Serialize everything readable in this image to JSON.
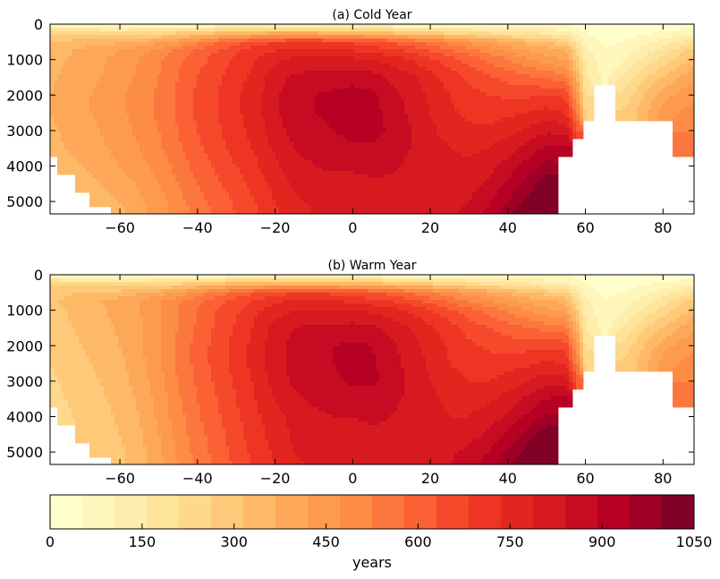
{
  "chart_data": [
    {
      "type": "heatmap",
      "title": "(a) Cold Year",
      "xlabel": "",
      "ylabel": "",
      "xlim": [
        -78,
        88
      ],
      "ylim": [
        5350,
        0
      ],
      "x_ticks": [
        -60,
        -40,
        -20,
        0,
        20,
        40,
        60,
        80
      ],
      "x_tick_labels": [
        "−60",
        "−40",
        "−20",
        "0",
        "20",
        "40",
        "60",
        "80"
      ],
      "y_ticks": [
        0,
        1000,
        2000,
        3000,
        4000,
        5000
      ],
      "y_tick_labels": [
        "0",
        "1000",
        "2000",
        "3000",
        "4000",
        "5000"
      ],
      "x_grid": [
        -78,
        -74,
        -70,
        -65,
        -60,
        -55,
        -50,
        -45,
        -40,
        -35,
        -30,
        -25,
        -20,
        -15,
        -10,
        -5,
        0,
        5,
        10,
        15,
        20,
        25,
        30,
        35,
        40,
        45,
        50,
        55,
        58,
        60,
        65,
        70,
        75,
        80,
        85,
        88
      ],
      "depth_grid": [
        0,
        250,
        500,
        750,
        1000,
        1500,
        2000,
        2500,
        3000,
        3500,
        4000,
        4500,
        5000,
        5350
      ],
      "values_years": [
        [
          20,
          25,
          30,
          35,
          40,
          45,
          50,
          50,
          50,
          50,
          50,
          50,
          50,
          50,
          50,
          50,
          50,
          50,
          50,
          50,
          50,
          50,
          50,
          50,
          50,
          50,
          50,
          50,
          30,
          20,
          10,
          10,
          10,
          10,
          10,
          10
        ],
        [
          250,
          240,
          230,
          225,
          220,
          220,
          230,
          250,
          280,
          300,
          320,
          340,
          350,
          350,
          350,
          340,
          330,
          320,
          300,
          280,
          260,
          240,
          220,
          200,
          180,
          160,
          140,
          120,
          80,
          50,
          30,
          30,
          40,
          60,
          80,
          100
        ],
        [
          300,
          310,
          320,
          330,
          340,
          360,
          390,
          430,
          480,
          540,
          580,
          620,
          650,
          660,
          660,
          650,
          640,
          620,
          600,
          560,
          520,
          480,
          440,
          400,
          360,
          330,
          300,
          260,
          160,
          80,
          40,
          50,
          80,
          120,
          160,
          200
        ],
        [
          320,
          340,
          360,
          380,
          400,
          430,
          470,
          520,
          560,
          600,
          640,
          680,
          700,
          720,
          720,
          720,
          700,
          680,
          660,
          640,
          600,
          560,
          520,
          480,
          440,
          400,
          380,
          360,
          220,
          120,
          50,
          80,
          120,
          180,
          240,
          280
        ],
        [
          330,
          350,
          370,
          390,
          420,
          450,
          490,
          540,
          580,
          620,
          660,
          700,
          740,
          760,
          760,
          760,
          760,
          750,
          730,
          700,
          660,
          620,
          580,
          540,
          500,
          460,
          420,
          400,
          260,
          140,
          60,
          100,
          160,
          220,
          280,
          320
        ],
        [
          340,
          360,
          380,
          400,
          430,
          460,
          500,
          550,
          600,
          640,
          680,
          720,
          780,
          810,
          820,
          820,
          830,
          820,
          790,
          760,
          720,
          680,
          640,
          610,
          580,
          560,
          540,
          520,
          340,
          160,
          80,
          160,
          240,
          300,
          360,
          400
        ],
        [
          350,
          370,
          390,
          410,
          440,
          470,
          510,
          560,
          610,
          650,
          690,
          730,
          790,
          830,
          850,
          860,
          870,
          860,
          820,
          780,
          740,
          700,
          670,
          650,
          640,
          640,
          650,
          640,
          420,
          200,
          null,
          220,
          300,
          380,
          420,
          440
        ],
        [
          350,
          370,
          390,
          410,
          440,
          470,
          510,
          560,
          610,
          650,
          690,
          730,
          790,
          830,
          850,
          860,
          880,
          870,
          830,
          790,
          750,
          710,
          690,
          680,
          690,
          700,
          720,
          700,
          500,
          240,
          null,
          260,
          330,
          420,
          460,
          470
        ],
        [
          340,
          360,
          380,
          400,
          430,
          460,
          500,
          550,
          600,
          640,
          680,
          720,
          780,
          820,
          840,
          850,
          870,
          870,
          840,
          800,
          760,
          730,
          710,
          710,
          730,
          760,
          790,
          780,
          600,
          null,
          null,
          null,
          null,
          null,
          500,
          500
        ],
        [
          330,
          350,
          370,
          390,
          420,
          450,
          490,
          540,
          590,
          630,
          670,
          710,
          760,
          800,
          820,
          830,
          840,
          840,
          820,
          800,
          770,
          750,
          740,
          750,
          780,
          820,
          860,
          870,
          null,
          null,
          null,
          null,
          null,
          null,
          520,
          520
        ],
        [
          null,
          330,
          350,
          370,
          400,
          430,
          470,
          520,
          570,
          610,
          650,
          690,
          740,
          780,
          800,
          810,
          810,
          820,
          810,
          790,
          770,
          760,
          760,
          780,
          820,
          870,
          920,
          null,
          null,
          null,
          null,
          null,
          null,
          null,
          null,
          null
        ],
        [
          null,
          null,
          330,
          350,
          370,
          410,
          450,
          500,
          550,
          590,
          630,
          670,
          720,
          760,
          780,
          780,
          780,
          790,
          790,
          780,
          770,
          770,
          780,
          810,
          860,
          920,
          980,
          null,
          null,
          null,
          null,
          null,
          null,
          null,
          null,
          null
        ],
        [
          null,
          null,
          null,
          330,
          350,
          390,
          430,
          480,
          530,
          570,
          610,
          650,
          700,
          740,
          760,
          760,
          760,
          770,
          770,
          770,
          770,
          780,
          800,
          840,
          900,
          960,
          1020,
          null,
          null,
          null,
          null,
          null,
          null,
          null,
          null,
          null
        ],
        [
          null,
          null,
          null,
          null,
          330,
          380,
          420,
          470,
          520,
          560,
          600,
          640,
          690,
          730,
          750,
          750,
          750,
          760,
          770,
          770,
          780,
          790,
          820,
          870,
          940,
          1000,
          1040,
          null,
          null,
          null,
          null,
          null,
          null,
          null,
          null,
          null
        ]
      ]
    },
    {
      "type": "heatmap",
      "title": "(b) Warm Year",
      "xlabel": "",
      "ylabel": "",
      "xlim": [
        -78,
        88
      ],
      "ylim": [
        5350,
        0
      ],
      "x_ticks": [
        -60,
        -40,
        -20,
        0,
        20,
        40,
        60,
        80
      ],
      "x_tick_labels": [
        "−60",
        "−40",
        "−20",
        "0",
        "20",
        "40",
        "60",
        "80"
      ],
      "y_ticks": [
        0,
        1000,
        2000,
        3000,
        4000,
        5000
      ],
      "y_tick_labels": [
        "0",
        "1000",
        "2000",
        "3000",
        "4000",
        "5000"
      ],
      "x_grid": [
        -78,
        -74,
        -70,
        -65,
        -60,
        -55,
        -50,
        -45,
        -40,
        -35,
        -30,
        -25,
        -20,
        -15,
        -10,
        -5,
        0,
        5,
        10,
        15,
        20,
        25,
        30,
        35,
        40,
        45,
        50,
        55,
        58,
        60,
        65,
        70,
        75,
        80,
        85,
        88
      ],
      "depth_grid": [
        0,
        250,
        500,
        750,
        1000,
        1500,
        2000,
        2500,
        3000,
        3500,
        4000,
        4500,
        5000,
        5350
      ],
      "values_years": [
        [
          20,
          25,
          30,
          35,
          40,
          45,
          50,
          50,
          50,
          50,
          50,
          50,
          50,
          50,
          50,
          50,
          50,
          50,
          50,
          50,
          50,
          50,
          50,
          50,
          50,
          50,
          50,
          50,
          30,
          20,
          10,
          10,
          10,
          10,
          10,
          10
        ],
        [
          240,
          230,
          220,
          215,
          210,
          210,
          220,
          240,
          270,
          290,
          310,
          330,
          340,
          340,
          340,
          330,
          320,
          310,
          290,
          270,
          250,
          230,
          210,
          190,
          170,
          150,
          130,
          110,
          80,
          50,
          30,
          30,
          40,
          60,
          80,
          100
        ],
        [
          280,
          290,
          300,
          310,
          320,
          340,
          370,
          410,
          460,
          520,
          560,
          600,
          630,
          640,
          640,
          630,
          620,
          600,
          580,
          540,
          500,
          460,
          420,
          380,
          340,
          310,
          280,
          250,
          150,
          80,
          40,
          50,
          80,
          120,
          160,
          200
        ],
        [
          290,
          310,
          330,
          350,
          370,
          400,
          440,
          490,
          540,
          580,
          620,
          660,
          690,
          710,
          710,
          710,
          690,
          670,
          650,
          620,
          580,
          540,
          500,
          460,
          420,
          380,
          360,
          340,
          210,
          110,
          50,
          80,
          120,
          180,
          240,
          280
        ],
        [
          280,
          300,
          320,
          340,
          370,
          400,
          440,
          500,
          550,
          600,
          640,
          690,
          730,
          750,
          750,
          750,
          750,
          740,
          720,
          690,
          650,
          610,
          570,
          530,
          490,
          450,
          410,
          390,
          250,
          130,
          60,
          100,
          160,
          220,
          280,
          320
        ],
        [
          270,
          290,
          310,
          330,
          360,
          390,
          440,
          500,
          560,
          610,
          660,
          710,
          770,
          800,
          810,
          810,
          820,
          810,
          780,
          750,
          710,
          670,
          630,
          600,
          570,
          550,
          530,
          510,
          330,
          150,
          80,
          160,
          240,
          300,
          360,
          400
        ],
        [
          260,
          280,
          300,
          320,
          350,
          390,
          440,
          510,
          570,
          620,
          670,
          720,
          780,
          820,
          840,
          850,
          860,
          850,
          810,
          770,
          730,
          690,
          660,
          640,
          630,
          630,
          640,
          630,
          410,
          190,
          null,
          220,
          300,
          380,
          420,
          440
        ],
        [
          250,
          270,
          290,
          310,
          340,
          380,
          440,
          510,
          570,
          620,
          670,
          720,
          780,
          820,
          840,
          850,
          870,
          860,
          820,
          780,
          740,
          700,
          680,
          670,
          680,
          690,
          710,
          690,
          490,
          230,
          null,
          260,
          330,
          420,
          460,
          470
        ],
        [
          240,
          260,
          280,
          300,
          330,
          370,
          430,
          500,
          560,
          610,
          660,
          710,
          770,
          810,
          830,
          840,
          860,
          860,
          830,
          790,
          750,
          720,
          700,
          700,
          720,
          750,
          780,
          770,
          590,
          null,
          null,
          null,
          null,
          null,
          500,
          500
        ],
        [
          230,
          250,
          270,
          290,
          320,
          360,
          420,
          490,
          550,
          600,
          650,
          700,
          750,
          790,
          810,
          820,
          830,
          830,
          810,
          790,
          760,
          740,
          730,
          740,
          770,
          810,
          850,
          860,
          null,
          null,
          null,
          null,
          null,
          null,
          520,
          520
        ],
        [
          null,
          240,
          260,
          280,
          310,
          350,
          410,
          480,
          540,
          590,
          640,
          690,
          730,
          770,
          790,
          800,
          800,
          810,
          800,
          780,
          760,
          750,
          750,
          770,
          810,
          860,
          910,
          null,
          null,
          null,
          null,
          null,
          null,
          null,
          null,
          null
        ],
        [
          null,
          null,
          250,
          270,
          300,
          340,
          400,
          470,
          530,
          580,
          630,
          680,
          720,
          760,
          780,
          780,
          780,
          790,
          790,
          780,
          770,
          770,
          780,
          810,
          860,
          920,
          980,
          null,
          null,
          null,
          null,
          null,
          null,
          null,
          null,
          null
        ],
        [
          null,
          null,
          null,
          260,
          290,
          330,
          390,
          460,
          520,
          570,
          620,
          670,
          710,
          750,
          770,
          770,
          770,
          780,
          780,
          780,
          780,
          790,
          810,
          850,
          910,
          970,
          1030,
          null,
          null,
          null,
          null,
          null,
          null,
          null,
          null,
          null
        ],
        [
          null,
          null,
          null,
          null,
          290,
          330,
          380,
          450,
          510,
          560,
          610,
          660,
          700,
          740,
          760,
          760,
          760,
          770,
          780,
          780,
          790,
          800,
          830,
          880,
          940,
          1000,
          1040,
          null,
          null,
          null,
          null,
          null,
          null,
          null,
          null,
          null
        ]
      ]
    }
  ],
  "colorbar": {
    "label": "years",
    "min": 0,
    "max": 1050,
    "levels_step": 50,
    "tick_values": [
      0,
      150,
      300,
      450,
      600,
      750,
      900,
      1050
    ],
    "tick_labels": [
      "0",
      "150",
      "300",
      "450",
      "600",
      "750",
      "900",
      "1050"
    ],
    "colormap": "YlOrRd",
    "colors": [
      "#ffffcc",
      "#fff6bc",
      "#feedac",
      "#fee39b",
      "#fed98b",
      "#fec979",
      "#feb967",
      "#fda858",
      "#fd9a4e",
      "#fd8c44",
      "#fc773d",
      "#fc6035",
      "#f6492c",
      "#ee3524",
      "#e2251f",
      "#d61a1f",
      "#c70b22",
      "#b60024",
      "#9f0026",
      "#800026"
    ]
  }
}
